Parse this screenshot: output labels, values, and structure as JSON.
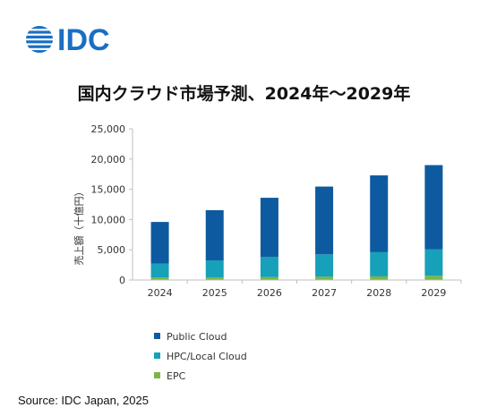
{
  "logo": {
    "text": "IDC",
    "color": "#1a6fc4"
  },
  "title": "国内クラウド市場予測、2024年～2029年",
  "source": "Source: IDC Japan, 2025",
  "colors": {
    "public": "#0e5aa0",
    "hpc": "#17a0b9",
    "epc": "#7ab648",
    "axis": "#bfbfbf"
  },
  "chart_data": {
    "type": "bar",
    "stacked": true,
    "categories": [
      "2024",
      "2025",
      "2026",
      "2027",
      "2028",
      "2029"
    ],
    "ylabel": "売上額（十億円）",
    "xlabel": "",
    "ylim": [
      0,
      25000
    ],
    "yticks": [
      0,
      5000,
      10000,
      15000,
      20000,
      25000
    ],
    "ytick_labels": [
      "0",
      "5,000",
      "10,000",
      "15,000",
      "20,000",
      "25,000"
    ],
    "grid": false,
    "legend_position": "bottom",
    "series": [
      {
        "name": "EPC",
        "color": "#7ab648",
        "values": [
          400,
          450,
          500,
          550,
          600,
          700
        ]
      },
      {
        "name": "HPC/Local Cloud",
        "color": "#17a0b9",
        "values": [
          2300,
          2800,
          3300,
          3700,
          4000,
          4400
        ]
      },
      {
        "name": "Public Cloud",
        "color": "#0e5aa0",
        "values": [
          6900,
          8300,
          9800,
          11200,
          12700,
          13900
        ]
      }
    ],
    "legend_order": [
      "Public Cloud",
      "HPC/Local Cloud",
      "EPC"
    ]
  }
}
